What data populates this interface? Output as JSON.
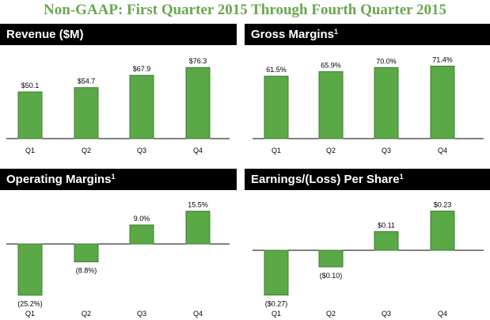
{
  "page_title": "Non-GAAP: First Quarter 2015 Through Fourth Quarter 2015",
  "colors": {
    "bar": "#5aa846",
    "bar_edge": "#3e7f2e",
    "header_bg": "#000000",
    "title": "#6aa84f"
  },
  "chart_data": [
    {
      "type": "bar",
      "title": "Revenue ($M)",
      "footnote": "",
      "categories": [
        "Q1",
        "Q2",
        "Q3",
        "Q4"
      ],
      "values": [
        50.1,
        54.7,
        67.9,
        76.3
      ],
      "labels": [
        "$50.1",
        "$54.7",
        "$67.9",
        "$76.3"
      ],
      "ylim": [
        0,
        85
      ]
    },
    {
      "type": "bar",
      "title": "Gross Margins",
      "footnote": "1",
      "categories": [
        "Q1",
        "Q2",
        "Q3",
        "Q4"
      ],
      "values": [
        61.5,
        65.9,
        70.0,
        71.4
      ],
      "labels": [
        "61.5%",
        "65.9%",
        "70.0%",
        "71.4%"
      ],
      "ylim": [
        0,
        78
      ]
    },
    {
      "type": "bar",
      "title": "Operating Margins",
      "footnote": "1",
      "categories": [
        "Q1",
        "Q2",
        "Q3",
        "Q4"
      ],
      "values": [
        -25.2,
        -8.8,
        9.0,
        15.5
      ],
      "labels": [
        "(25.2%)",
        "(8.8%)",
        "9.0%",
        "15.5%"
      ],
      "ylim": [
        -30,
        18
      ]
    },
    {
      "type": "bar",
      "title": "Earnings/(Loss) Per Share",
      "footnote": "1",
      "categories": [
        "Q1",
        "Q2",
        "Q3",
        "Q4"
      ],
      "values": [
        -0.27,
        -0.1,
        0.11,
        0.23
      ],
      "labels": [
        "($0.27)",
        "($0.10)",
        "$0.11",
        "$0.23"
      ],
      "ylim": [
        -0.33,
        0.26
      ]
    }
  ]
}
